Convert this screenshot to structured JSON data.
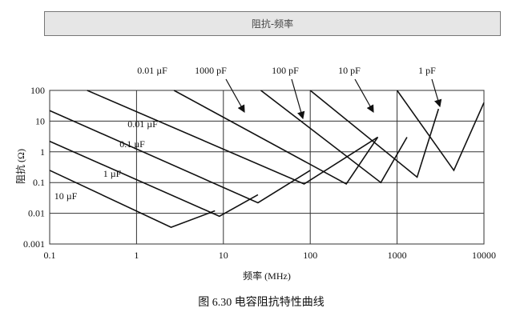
{
  "header": {
    "title": "阻抗-频率"
  },
  "chart_data": {
    "type": "line",
    "xlabel": "频率 (MHz)",
    "ylabel": "阻抗 (Ω)",
    "caption": "图 6.30 电容阻抗特性曲线",
    "xscale": "log",
    "yscale": "log",
    "grid": true,
    "xlim": [
      0.1,
      10000
    ],
    "ylim": [
      0.001,
      100
    ],
    "xticks": [
      0.1,
      1,
      10,
      100,
      1000,
      10000
    ],
    "yticks": [
      0.001,
      0.01,
      0.1,
      1,
      10,
      100
    ],
    "series": [
      {
        "name": "10 µF",
        "color": "#111111",
        "x": [
          0.1,
          2.5,
          8
        ],
        "values": [
          0.25,
          0.0035,
          0.012
        ]
      },
      {
        "name": "1 µF",
        "color": "#111111",
        "x": [
          0.1,
          9,
          25
        ],
        "values": [
          2.2,
          0.008,
          0.04
        ]
      },
      {
        "name": "0.1 µF",
        "color": "#111111",
        "x": [
          0.1,
          25,
          100
        ],
        "values": [
          22,
          0.022,
          0.25
        ]
      },
      {
        "name": "0.01 µF",
        "color": "#111111",
        "x": [
          0.27,
          85,
          600
        ],
        "values": [
          100,
          0.09,
          3
        ]
      },
      {
        "name": "1000 pF",
        "color": "#111111",
        "x": [
          2.7,
          260,
          600
        ],
        "values": [
          100,
          0.09,
          3
        ]
      },
      {
        "name": "100 pF",
        "color": "#111111",
        "x": [
          27,
          650,
          1300
        ],
        "values": [
          100,
          0.1,
          3
        ]
      },
      {
        "name": "10 pF",
        "color": "#111111",
        "x": [
          100,
          1700,
          3000
        ],
        "values": [
          100,
          0.15,
          25
        ]
      },
      {
        "name": "1 pF",
        "color": "#111111",
        "x": [
          1000,
          4500,
          10000
        ],
        "values": [
          100,
          0.25,
          40
        ]
      }
    ]
  }
}
